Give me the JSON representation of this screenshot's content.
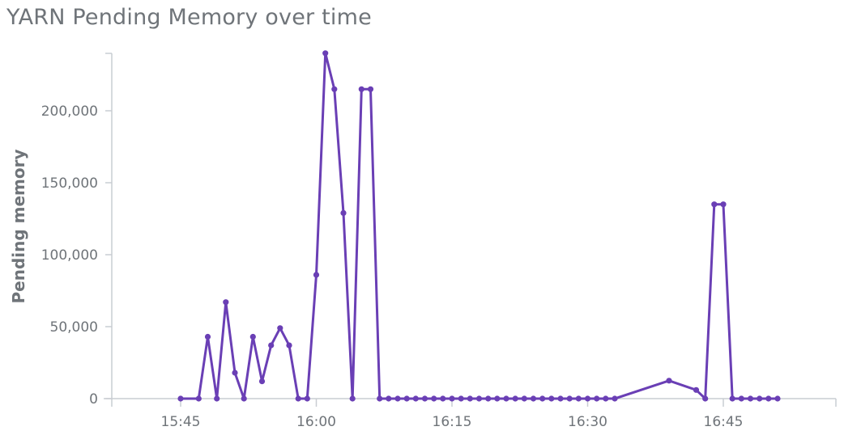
{
  "title": "YARN Pending Memory over time",
  "chart_data": {
    "type": "line",
    "title": "YARN Pending Memory over time",
    "xlabel": "",
    "ylabel": "Pending memory",
    "x_tick_labels": [
      "15:45",
      "16:00",
      "16:15",
      "16:30",
      "16:45"
    ],
    "y_tick_labels": [
      "0",
      "50,000",
      "100,000",
      "150,000",
      "200,000"
    ],
    "xlim": [
      "15:37",
      "16:54"
    ],
    "ylim": [
      0,
      240000
    ],
    "grid": false,
    "color": "#6a3fb5",
    "series": [
      {
        "x": [
          "15:45",
          "15:47",
          "15:48",
          "15:49",
          "15:50",
          "15:51",
          "15:52",
          "15:53",
          "15:54",
          "15:55",
          "15:56",
          "15:57",
          "15:58",
          "15:59",
          "16:00",
          "16:01",
          "16:02",
          "16:03",
          "16:04",
          "16:05",
          "16:06",
          "16:07",
          "16:08",
          "16:09",
          "16:10",
          "16:11",
          "16:12",
          "16:13",
          "16:14",
          "16:15",
          "16:16",
          "16:17",
          "16:18",
          "16:19",
          "16:20",
          "16:21",
          "16:22",
          "16:23",
          "16:24",
          "16:25",
          "16:26",
          "16:27",
          "16:28",
          "16:29",
          "16:30",
          "16:31",
          "16:32",
          "16:33",
          "16:39",
          "16:42",
          "16:43",
          "16:44",
          "16:45",
          "16:46",
          "16:47",
          "16:48",
          "16:49",
          "16:50",
          "16:51"
        ],
        "y": [
          0,
          0,
          43000,
          0,
          67000,
          18000,
          0,
          43000,
          12000,
          37000,
          49000,
          37000,
          0,
          0,
          86000,
          240000,
          215000,
          129000,
          0,
          215000,
          215000,
          0,
          0,
          0,
          0,
          0,
          0,
          0,
          0,
          0,
          0,
          0,
          0,
          0,
          0,
          0,
          0,
          0,
          0,
          0,
          0,
          0,
          0,
          0,
          0,
          0,
          0,
          0,
          12500,
          6000,
          0,
          135000,
          135000,
          0,
          0,
          0,
          0,
          0,
          0
        ]
      }
    ]
  }
}
